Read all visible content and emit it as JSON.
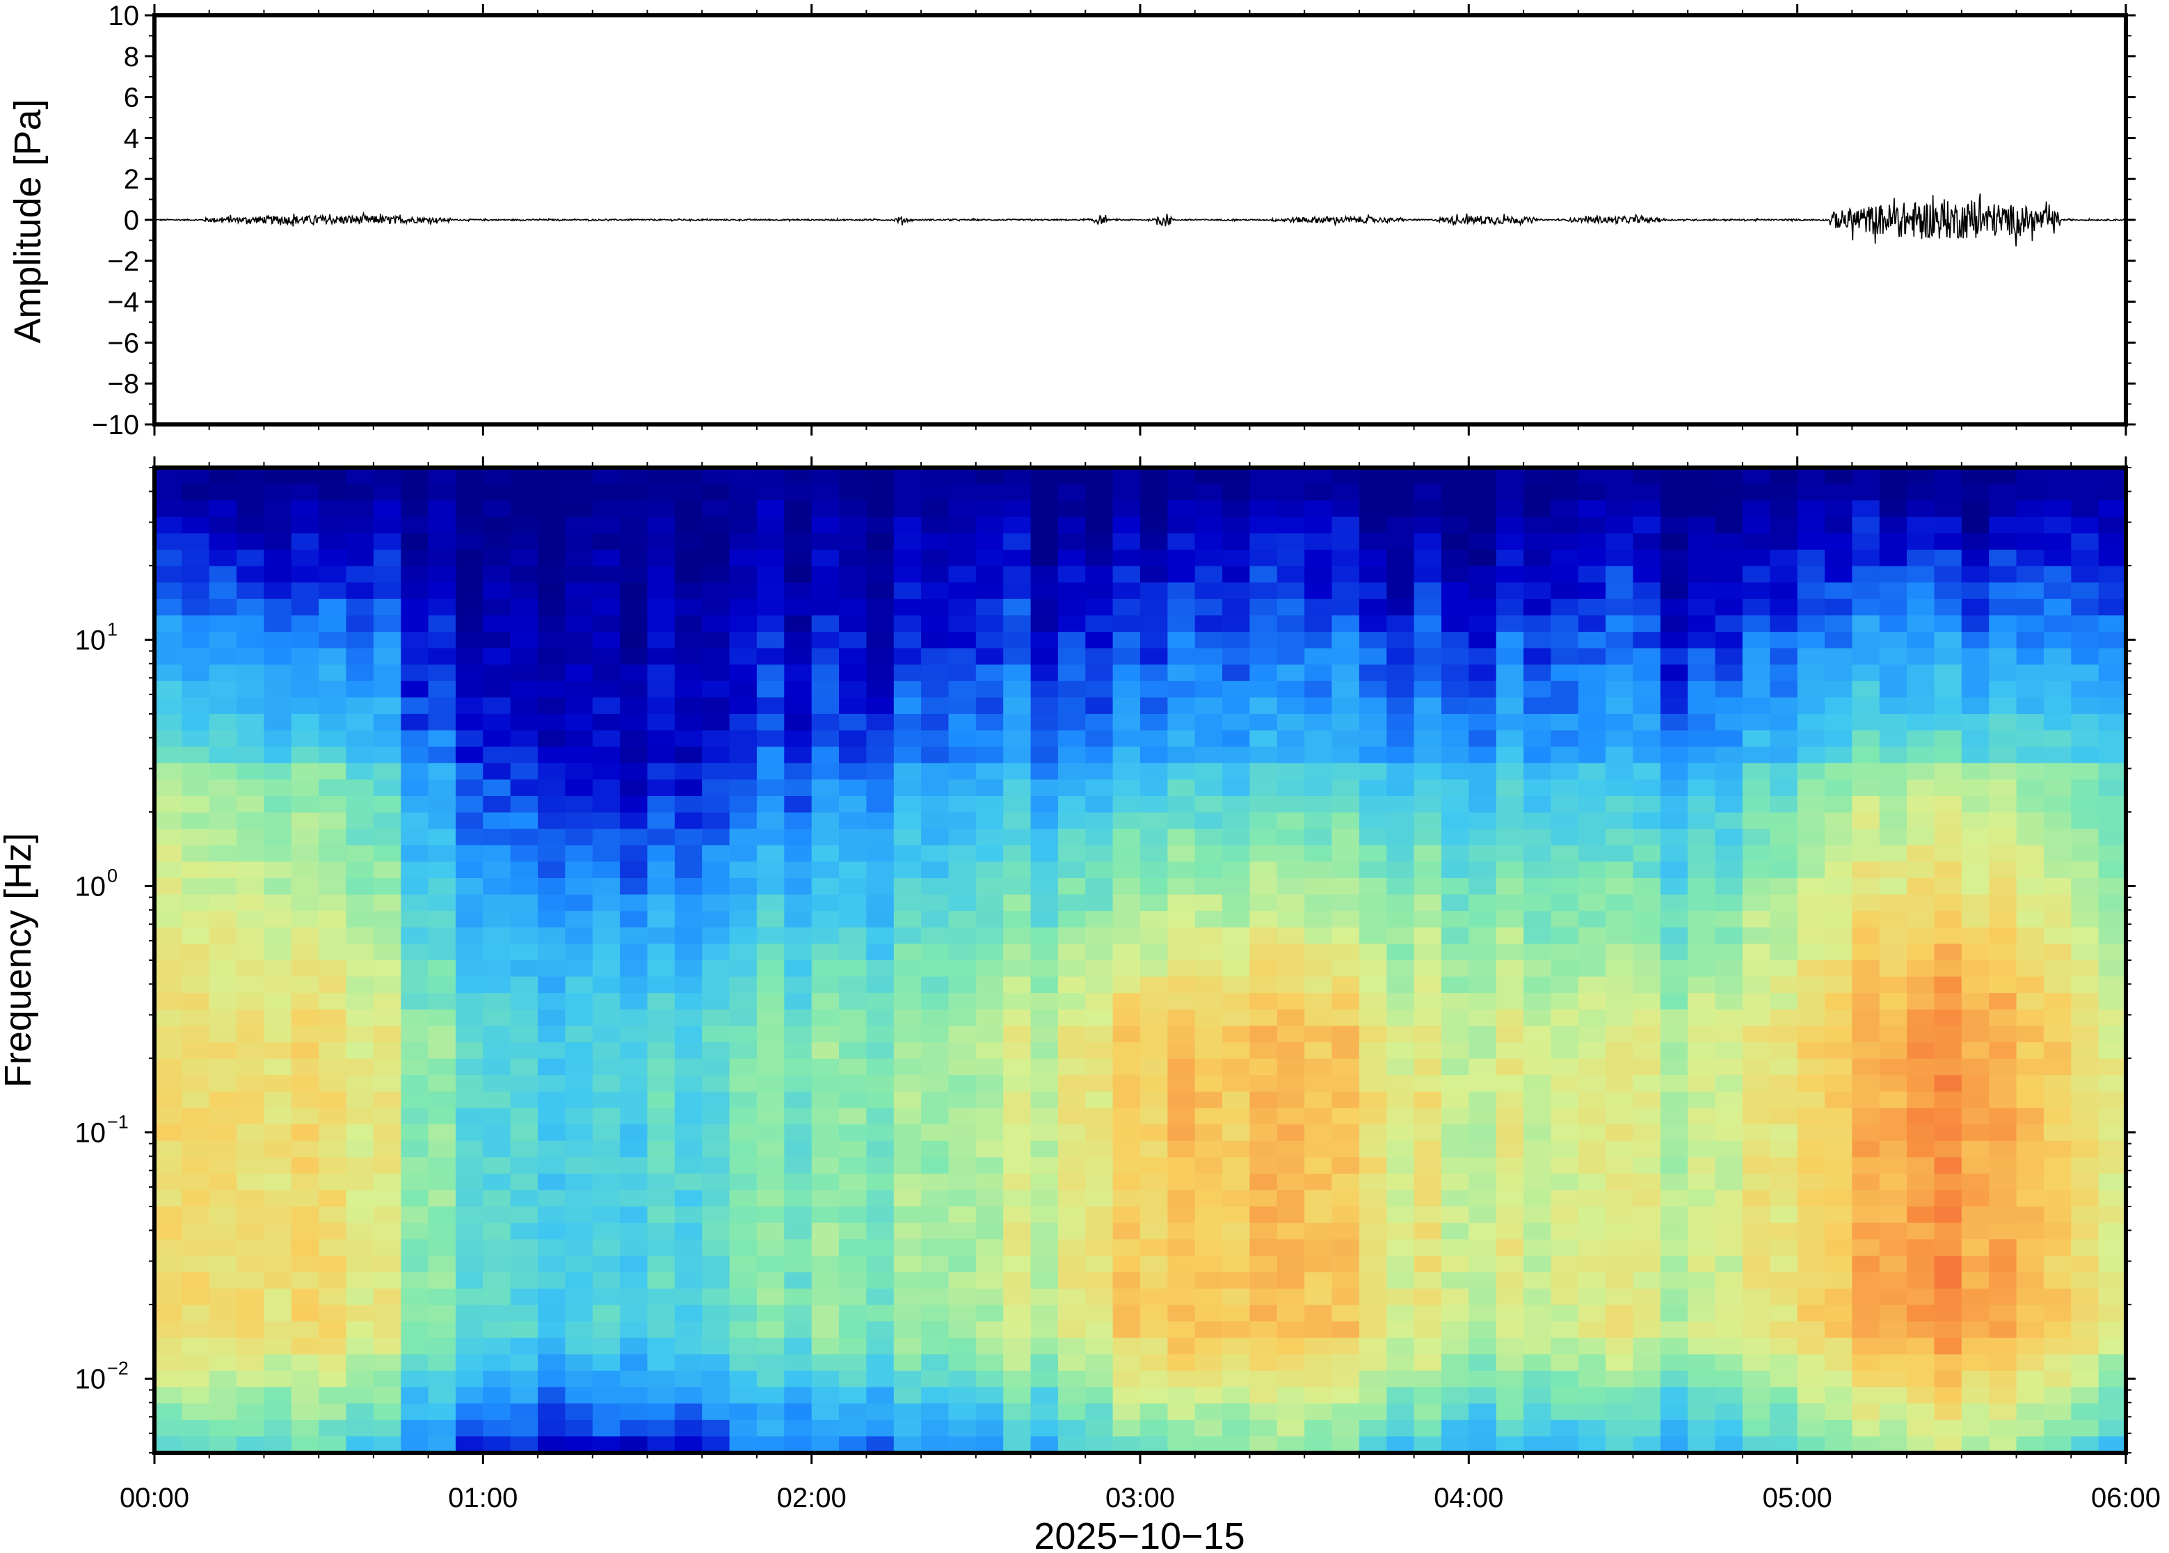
{
  "chart_data": [
    {
      "type": "line",
      "panel": "waveform",
      "ylabel": "Amplitude [Pa]",
      "ylim": [
        -10,
        10
      ],
      "yticks": [
        10,
        8,
        6,
        4,
        2,
        0,
        -2,
        -4,
        -6,
        -8,
        -10
      ],
      "ytick_labels": [
        "10",
        "8",
        "6",
        "4",
        "2",
        "0",
        "−2",
        "−4",
        "−6",
        "−8",
        "−10"
      ],
      "xlim_hours": [
        0,
        6
      ],
      "trace_color": "#000000",
      "bursts": [
        {
          "start_h": 0.15,
          "end_h": 0.9,
          "max_amp": 0.4
        },
        {
          "start_h": 2.25,
          "end_h": 2.3,
          "max_amp": 0.3
        },
        {
          "start_h": 2.85,
          "end_h": 2.9,
          "max_amp": 0.4
        },
        {
          "start_h": 3.05,
          "end_h": 3.1,
          "max_amp": 0.6
        },
        {
          "start_h": 3.4,
          "end_h": 3.8,
          "max_amp": 0.3
        },
        {
          "start_h": 3.9,
          "end_h": 4.2,
          "max_amp": 0.4
        },
        {
          "start_h": 4.3,
          "end_h": 4.6,
          "max_amp": 0.3
        },
        {
          "start_h": 5.1,
          "end_h": 5.8,
          "max_amp": 1.7
        }
      ]
    },
    {
      "type": "heatmap",
      "panel": "spectrogram",
      "ylabel": "Frequency [Hz]",
      "yscale": "log",
      "ylim_hz": [
        0.005,
        50
      ],
      "yticks": [
        {
          "base": "10",
          "exp": "1",
          "value": 10
        },
        {
          "base": "10",
          "exp": "0",
          "value": 1
        },
        {
          "base": "10",
          "exp": "−1",
          "value": 0.1
        },
        {
          "base": "10",
          "exp": "−2",
          "value": 0.01
        }
      ],
      "colormap": [
        "#000080",
        "#0000cd",
        "#1e90ff",
        "#40c8f0",
        "#80e8b0",
        "#d8f090",
        "#f8d060",
        "#f89040",
        "#f05030"
      ],
      "hour_columns_power_profile": [
        {
          "hour": 0.0,
          "low_freq_power": 0.7,
          "high_freq_power": 0.55
        },
        {
          "hour": 0.5,
          "low_freq_power": 0.72,
          "high_freq_power": 0.5
        },
        {
          "hour": 1.0,
          "low_freq_power": 0.45,
          "high_freq_power": 0.2
        },
        {
          "hour": 1.5,
          "low_freq_power": 0.4,
          "high_freq_power": 0.1
        },
        {
          "hour": 2.0,
          "low_freq_power": 0.5,
          "high_freq_power": 0.2
        },
        {
          "hour": 2.5,
          "low_freq_power": 0.55,
          "high_freq_power": 0.3
        },
        {
          "hour": 3.0,
          "low_freq_power": 0.75,
          "high_freq_power": 0.35
        },
        {
          "hour": 3.5,
          "low_freq_power": 0.75,
          "high_freq_power": 0.35
        },
        {
          "hour": 4.0,
          "low_freq_power": 0.65,
          "high_freq_power": 0.4
        },
        {
          "hour": 4.5,
          "low_freq_power": 0.6,
          "high_freq_power": 0.3
        },
        {
          "hour": 5.0,
          "low_freq_power": 0.7,
          "high_freq_power": 0.45
        },
        {
          "hour": 5.5,
          "low_freq_power": 0.9,
          "high_freq_power": 0.6
        },
        {
          "hour": 6.0,
          "low_freq_power": 0.6,
          "high_freq_power": 0.4
        }
      ]
    }
  ],
  "xaxis": {
    "tick_labels": [
      "00:00",
      "01:00",
      "02:00",
      "03:00",
      "04:00",
      "05:00",
      "06:00"
    ],
    "date_label": "2025−10−15"
  }
}
